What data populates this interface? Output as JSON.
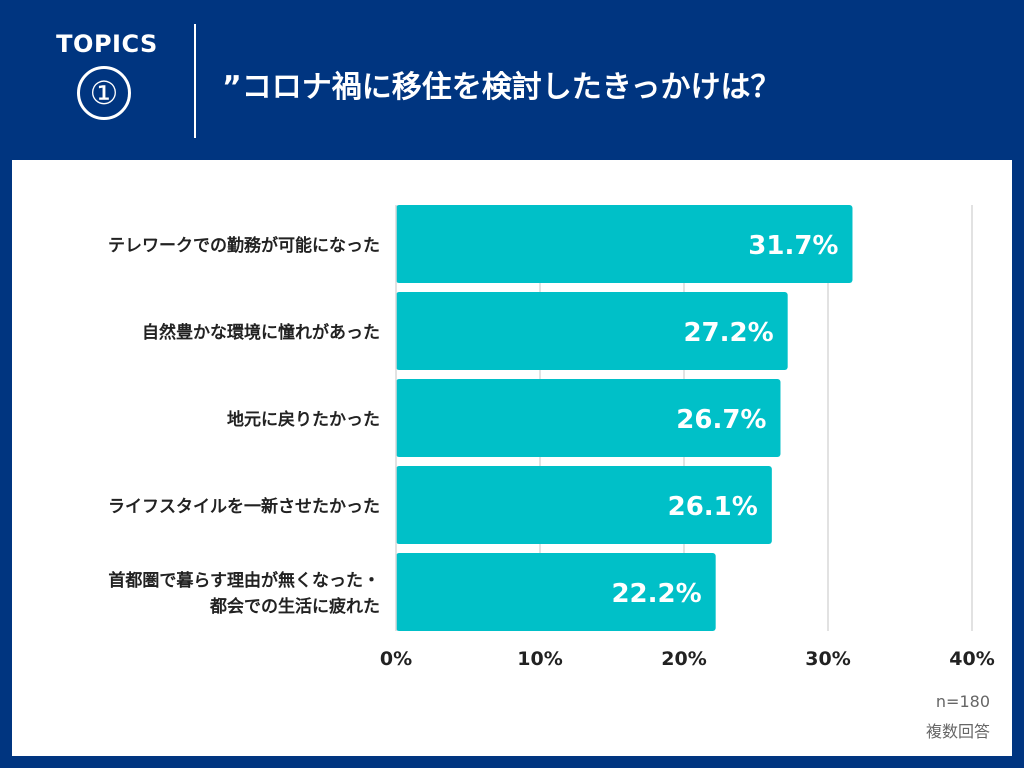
{
  "header": {
    "topics_label": "TOPICS",
    "topics_number": "①",
    "title": "”コロナ禍に移住を検討したきっかけは？"
  },
  "chart_data": {
    "type": "bar",
    "orientation": "horizontal",
    "categories": [
      [
        "テレワークでの勤務が可能になった"
      ],
      [
        "自然豊かな環境に憧れがあった"
      ],
      [
        "地元に戻りたかった"
      ],
      [
        "ライフスタイルを一新させたかった"
      ],
      [
        "首都圏で暮らす理由が無くなった・",
        "都会での生活に疲れた"
      ]
    ],
    "values": [
      31.7,
      27.2,
      26.7,
      26.1,
      22.2
    ],
    "value_labels": [
      "31.7%",
      "27.2%",
      "26.7%",
      "26.1%",
      "22.2%"
    ],
    "xlim": [
      0,
      40
    ],
    "xticks": [
      0,
      10,
      20,
      30,
      40
    ],
    "xtick_labels": [
      "0%",
      "10%",
      "20%",
      "30%",
      "40%"
    ],
    "bar_color": "#00C0C8",
    "grid_color": "#D9D9D9"
  },
  "footnote": {
    "sample": "n=180",
    "note": "複数回答"
  }
}
